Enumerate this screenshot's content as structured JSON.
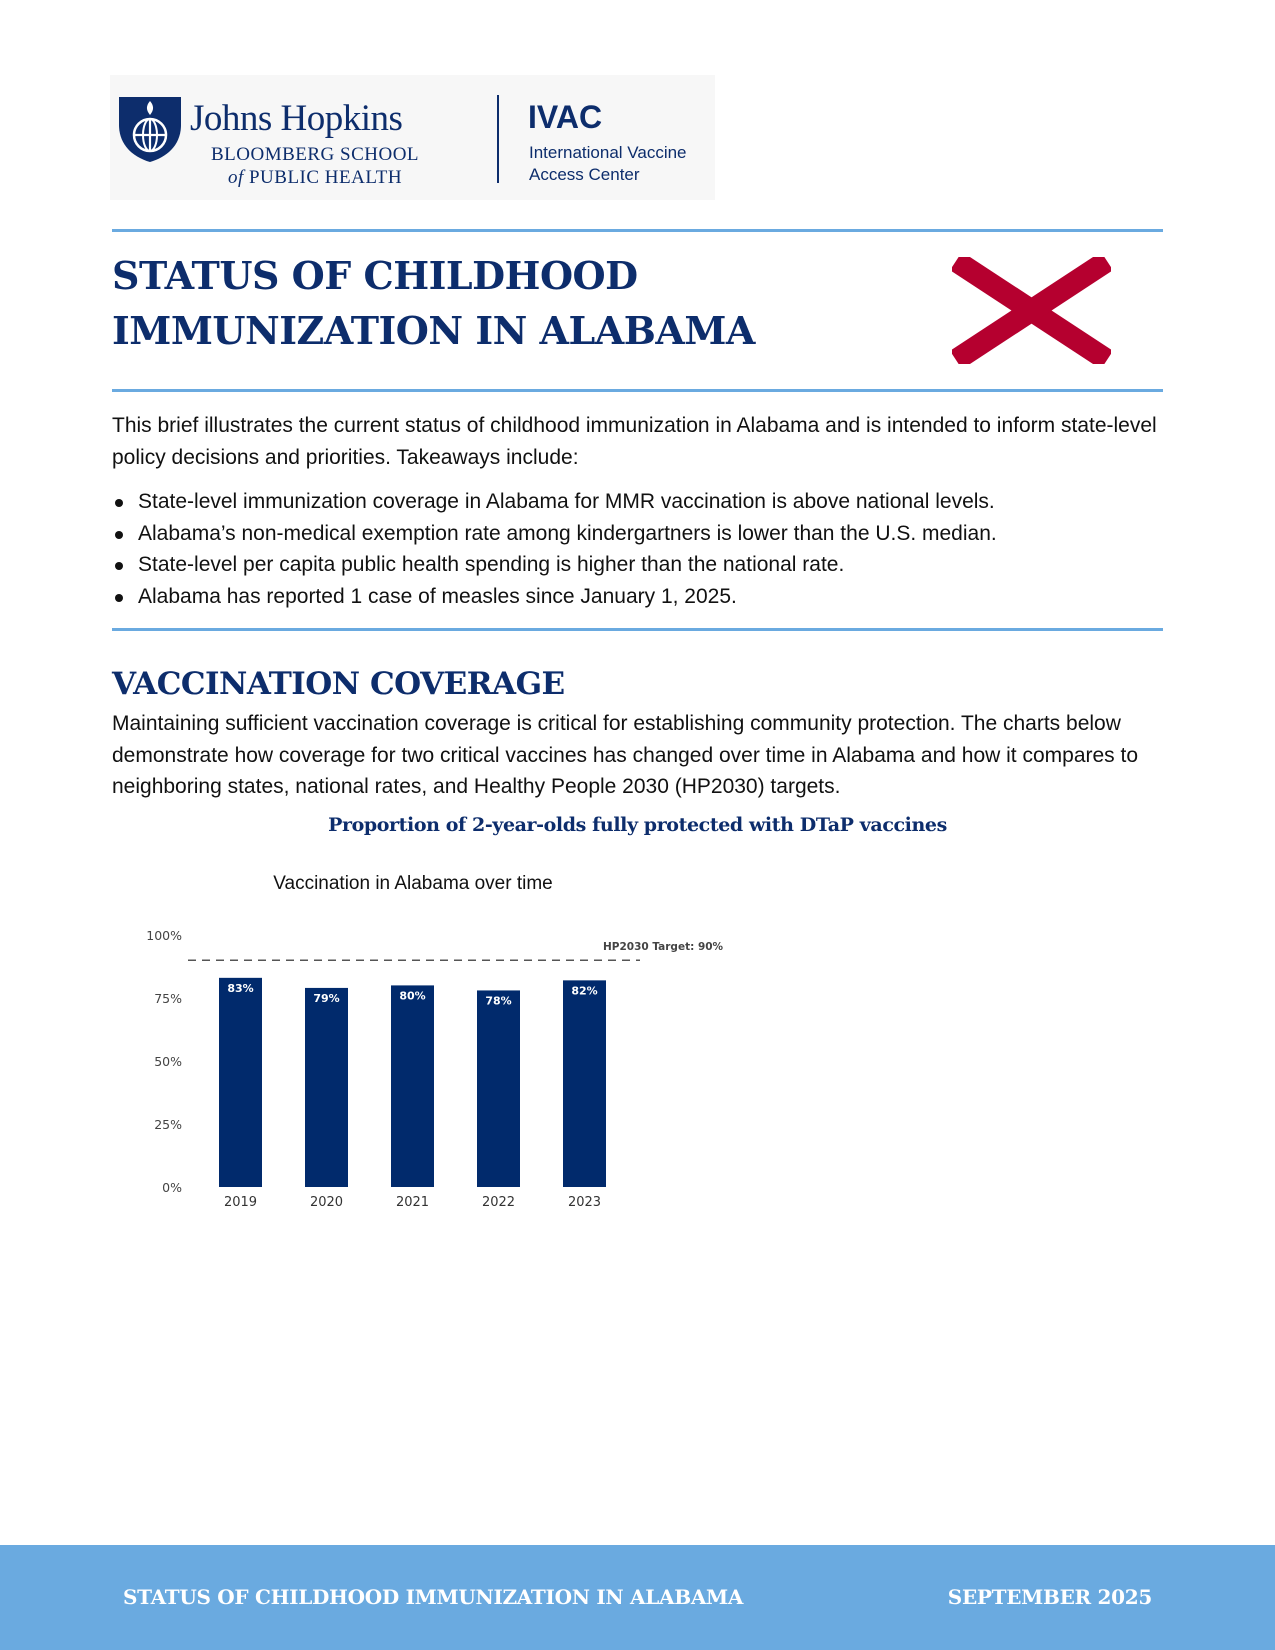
{
  "logo": {
    "jh_name": "Johns Hopkins",
    "jh_sub1": "BLOOMBERG SCHOOL",
    "jh_sub2_of": "of",
    "jh_sub2_rest": " PUBLIC HEALTH",
    "ivac_name": "IVAC",
    "ivac_sub1": "International Vaccine",
    "ivac_sub2": "Access Center"
  },
  "header": {
    "title": "STATUS OF CHILDHOOD IMMUNIZATION IN ALABAMA",
    "flag_icon": "alabama-flag-icon"
  },
  "intro": {
    "text": "This brief illustrates the current status of childhood immunization in Alabama and is intended to inform state-level policy decisions and priorities. Takeaways include:",
    "bullets": [
      "State-level immunization coverage in Alabama for MMR vaccination is above national levels.",
      "Alabama’s non-medical exemption rate among kindergartners is lower than the U.S. median.",
      "State-level per capita public health spending is higher than the national rate.",
      "Alabama has reported 1 case of measles since January 1, 2025."
    ]
  },
  "section": {
    "heading": "VACCINATION COVERAGE",
    "body": "Maintaining sufficient vaccination coverage is critical for establishing community protection. The charts below demonstrate how coverage for two critical vaccines has changed over time in Alabama and how it compares to neighboring states, national rates, and Healthy People 2030 (HP2030) targets."
  },
  "chart_heading": "Proportion of 2-year-olds fully protected with DTaP vaccines",
  "chart_data": {
    "type": "bar",
    "title": "Vaccination in Alabama over time",
    "categories": [
      "2019",
      "2020",
      "2021",
      "2022",
      "2023"
    ],
    "values": [
      83,
      79,
      80,
      78,
      82
    ],
    "value_labels": [
      "83%",
      "79%",
      "80%",
      "78%",
      "82%"
    ],
    "ylim": [
      0,
      100
    ],
    "yticks": [
      0,
      25,
      50,
      75,
      100
    ],
    "ytick_labels": [
      "0%",
      "25%",
      "50%",
      "75%",
      "100%"
    ],
    "target_value": 90,
    "target_label": "HP2030 Target: 90%",
    "bar_color": "#012a6c"
  },
  "footer": {
    "left": "STATUS OF CHILDHOOD IMMUNIZATION IN ALABAMA",
    "right": "SEPTEMBER 2025"
  },
  "colors": {
    "navy": "#0d2d6c",
    "rule_blue": "#6aaae0",
    "flag_red": "#b5002f"
  }
}
